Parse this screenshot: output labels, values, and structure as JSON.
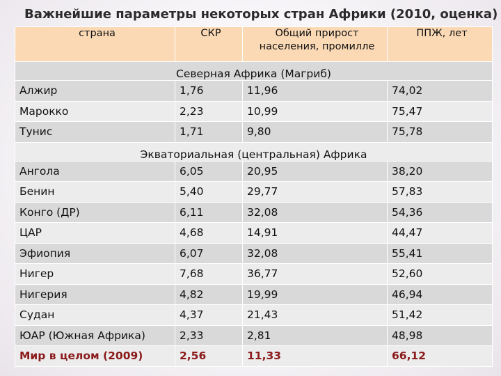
{
  "title": "Важнейшие параметры некоторых стран Африки (2010, оценка)",
  "headers": {
    "country": "страна",
    "skr": "СКР",
    "growth": "Общий прирост населения, промилле",
    "ppzh": "ППЖ, лет"
  },
  "sections": [
    {
      "name": "Северная Африка (Магриб)",
      "rows": [
        {
          "country": "Алжир",
          "skr": "1,76",
          "growth": "11,96",
          "ppzh": "74,02"
        },
        {
          "country": "Марокко",
          "skr": "2,23",
          "growth": "10,99",
          "ppzh": "75,47"
        },
        {
          "country": "Тунис",
          "skr": "1,71",
          "growth": "9,80",
          "ppzh": "75,78"
        }
      ]
    },
    {
      "name": "Экваториальная (центральная) Африка",
      "rows": [
        {
          "country": "Ангола",
          "skr": "6,05",
          "growth": "20,95",
          "ppzh": "38,20"
        },
        {
          "country": "Бенин",
          "skr": "5,40",
          "growth": "29,77",
          "ppzh": "57,83"
        },
        {
          "country": "Конго (ДР)",
          "skr": "6,11",
          "growth": "32,08",
          "ppzh": "54,36"
        },
        {
          "country": "ЦАР",
          "skr": "4,68",
          "growth": "14,91",
          "ppzh": "44,47"
        },
        {
          "country": "Эфиопия",
          "skr": "6,07",
          "growth": "32,08",
          "ppzh": "55,41"
        },
        {
          "country": "Нигер",
          "skr": "7,68",
          "growth": "36,77",
          "ppzh": "52,60"
        },
        {
          "country": "Нигерия",
          "skr": "4,82",
          "growth": "19,99",
          "ppzh": "46,94"
        },
        {
          "country": "Судан",
          "skr": "4,37",
          "growth": "21,43",
          "ppzh": "51,42"
        },
        {
          "country": "ЮАР (Южная Африка)",
          "skr": "2,33",
          "growth": "2,81",
          "ppzh": "48,98"
        }
      ]
    }
  ],
  "world": {
    "country": "Мир в целом (2009)",
    "skr": "2,56",
    "growth": "11,33",
    "ppzh": "66,12"
  },
  "colors": {
    "header_bg": "#fbd9b5",
    "row_dark": "#d9d9d9",
    "row_light": "#ececec",
    "world_text": "#8b1a1a"
  }
}
